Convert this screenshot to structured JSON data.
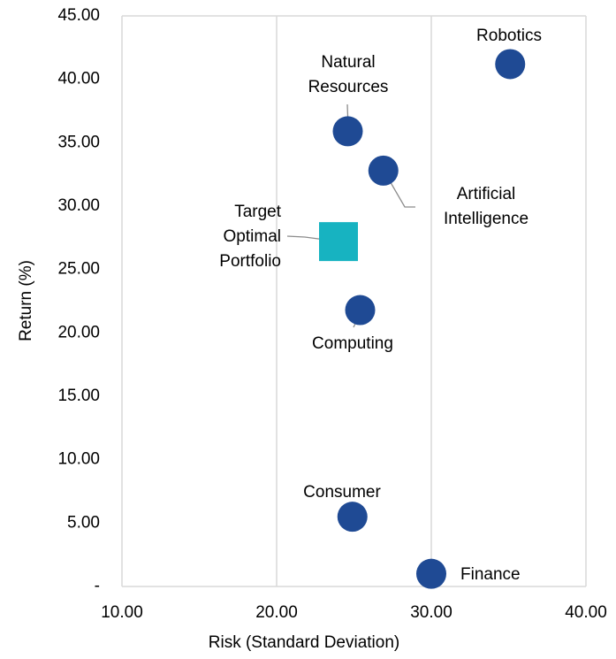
{
  "chart_data": {
    "type": "scatter",
    "x_label": "Risk (Standard Deviation)",
    "y_label": "Return (%)",
    "labels": [
      "Robotics",
      "Natural Resources",
      "Artificial Intelligence",
      "Target Optimal Portfolio",
      "Computing",
      "Consumer",
      "Finance"
    ],
    "x": [
      35.1,
      24.6,
      26.9,
      24.0,
      25.4,
      24.9,
      30.0
    ],
    "y": [
      41.2,
      35.9,
      32.8,
      27.2,
      21.8,
      5.5,
      1.0
    ],
    "markers": [
      "circle",
      "circle",
      "circle",
      "square",
      "circle",
      "circle",
      "circle"
    ],
    "colors": [
      "#1f4a94",
      "#1f4a94",
      "#1f4a94",
      "#17b3c1",
      "#1f4a94",
      "#1f4a94",
      "#1f4a94"
    ],
    "xlim": [
      10,
      40
    ],
    "ylim": [
      0,
      45
    ],
    "xticks": [
      {
        "value": 10,
        "label": "10.00"
      },
      {
        "value": 20,
        "label": "20.00"
      },
      {
        "value": 30,
        "label": "30.00"
      },
      {
        "value": 40,
        "label": "40.00"
      }
    ],
    "yticks": [
      {
        "value": 0,
        "label": "-"
      },
      {
        "value": 5,
        "label": "5.00"
      },
      {
        "value": 10,
        "label": "10.00"
      },
      {
        "value": 15,
        "label": "15.00"
      },
      {
        "value": 20,
        "label": "20.00"
      },
      {
        "value": 25,
        "label": "25.00"
      },
      {
        "value": 30,
        "label": "30.00"
      },
      {
        "value": 35,
        "label": "35.00"
      },
      {
        "value": 40,
        "label": "40.00"
      },
      {
        "value": 45,
        "label": "45.00"
      }
    ],
    "grid": "x"
  }
}
